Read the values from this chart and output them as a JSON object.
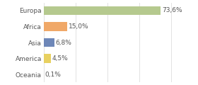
{
  "categories": [
    "Europa",
    "Africa",
    "Asia",
    "America",
    "Oceania"
  ],
  "values": [
    73.6,
    15.0,
    6.8,
    4.5,
    0.1
  ],
  "labels": [
    "73,6%",
    "15,0%",
    "6,8%",
    "4,5%",
    "0,1%"
  ],
  "bar_colors": [
    "#b5c98e",
    "#f0a868",
    "#6e87b8",
    "#e8d060",
    "#f5b8b8"
  ],
  "background_color": "#ffffff",
  "xlim": [
    0,
    82
  ],
  "label_fontsize": 6.5,
  "tick_fontsize": 6.5,
  "grid_color": "#dddddd",
  "text_color": "#555555"
}
